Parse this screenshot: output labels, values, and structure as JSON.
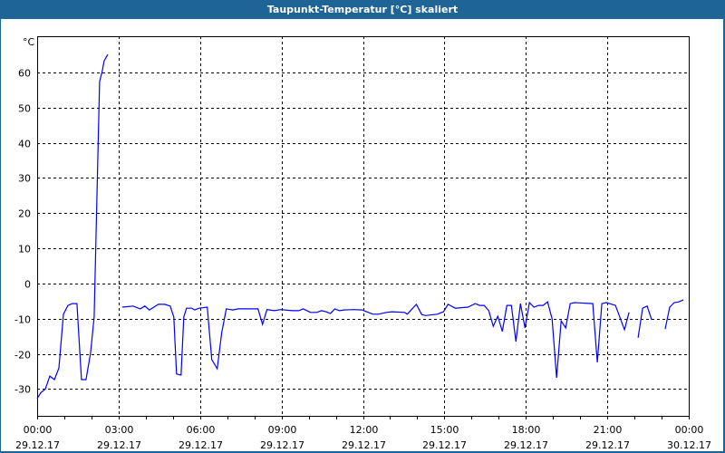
{
  "window": {
    "title": "Taupunkt-Temperatur [°C] skaliert"
  },
  "chart_data": {
    "type": "line",
    "title": "Taupunkt-Temperatur [°C] skaliert",
    "ylabel": "°C",
    "xlabel": "",
    "ylim": [
      -37.6,
      70.3
    ],
    "yticks": [
      60,
      50,
      40,
      30,
      20,
      10,
      0,
      -10,
      -20,
      -30
    ],
    "xlim": [
      "29.12.17 00:00",
      "30.12.17 00:00"
    ],
    "xticks": [
      {
        "time": "00:00",
        "date": "29.12.17"
      },
      {
        "time": "03:00",
        "date": "29.12.17"
      },
      {
        "time": "06:00",
        "date": "29.12.17"
      },
      {
        "time": "09:00",
        "date": "29.12.17"
      },
      {
        "time": "12:00",
        "date": "29.12.17"
      },
      {
        "time": "15:00",
        "date": "29.12.17"
      },
      {
        "time": "18:00",
        "date": "29.12.17"
      },
      {
        "time": "21:00",
        "date": "29.12.17"
      },
      {
        "time": "00:00",
        "date": "30.12.17"
      }
    ],
    "grid": true,
    "line_color": "#0000ff",
    "segments": [
      [
        [
          "00:00",
          -32.7
        ],
        [
          "00:08",
          -31
        ],
        [
          "00:18",
          -30
        ],
        [
          "00:28",
          -26.3
        ],
        [
          "00:38",
          -27.3
        ],
        [
          "00:48",
          -24
        ],
        [
          "00:58",
          -8.7
        ],
        [
          "01:08",
          -6.2
        ],
        [
          "01:18",
          -5.7
        ],
        [
          "01:28",
          -5.7
        ],
        [
          "01:38",
          -27.3
        ],
        [
          "01:48",
          -27.3
        ],
        [
          "01:58",
          -19.8
        ],
        [
          "02:06",
          -9.5
        ],
        [
          "02:18",
          57.4
        ],
        [
          "02:24",
          60.5
        ],
        [
          "02:28",
          63.3
        ],
        [
          "02:36",
          65.1
        ]
      ],
      [
        [
          "03:08",
          -6.7
        ],
        [
          "03:32",
          -6.4
        ],
        [
          "03:48",
          -7.2
        ],
        [
          "03:58",
          -6.4
        ],
        [
          "04:08",
          -7.5
        ],
        [
          "04:28",
          -5.9
        ],
        [
          "04:42",
          -5.9
        ],
        [
          "04:54",
          -6.4
        ],
        [
          "05:02",
          -9.5
        ],
        [
          "05:08",
          -25.7
        ],
        [
          "05:18",
          -26
        ],
        [
          "05:24",
          -9.5
        ],
        [
          "05:30",
          -7
        ],
        [
          "05:42",
          -7
        ],
        [
          "05:48",
          -7.5
        ],
        [
          "05:58",
          -7
        ],
        [
          "06:16",
          -6.7
        ],
        [
          "06:26",
          -21.6
        ],
        [
          "06:38",
          -24.2
        ],
        [
          "06:48",
          -13.9
        ],
        [
          "06:58",
          -7.2
        ],
        [
          "07:12",
          -7.5
        ],
        [
          "07:24",
          -7.2
        ],
        [
          "07:44",
          -7.2
        ],
        [
          "08:08",
          -7.2
        ],
        [
          "08:18",
          -11.6
        ],
        [
          "08:28",
          -7.4
        ],
        [
          "08:44",
          -7.7
        ],
        [
          "08:58",
          -7.4
        ],
        [
          "09:24",
          -7.7
        ],
        [
          "09:38",
          -7.7
        ],
        [
          "09:48",
          -7.2
        ],
        [
          "10:04",
          -8.2
        ],
        [
          "10:18",
          -8.2
        ],
        [
          "10:28",
          -7.7
        ],
        [
          "10:38",
          -8
        ],
        [
          "10:48",
          -8.5
        ],
        [
          "10:58",
          -7.2
        ],
        [
          "11:08",
          -7.7
        ],
        [
          "11:18",
          -7.5
        ],
        [
          "11:38",
          -7.4
        ],
        [
          "11:58",
          -7.5
        ],
        [
          "12:08",
          -8
        ],
        [
          "12:22",
          -8.7
        ],
        [
          "12:34",
          -8.7
        ],
        [
          "12:52",
          -8.2
        ],
        [
          "13:04",
          -8
        ],
        [
          "13:32",
          -8.2
        ],
        [
          "13:38",
          -8.7
        ],
        [
          "13:58",
          -5.9
        ],
        [
          "14:10",
          -8.8
        ],
        [
          "14:18",
          -9.1
        ],
        [
          "14:44",
          -8.7
        ],
        [
          "14:58",
          -8
        ],
        [
          "15:08",
          -5.9
        ],
        [
          "15:24",
          -7
        ],
        [
          "15:52",
          -6.7
        ],
        [
          "16:08",
          -5.7
        ],
        [
          "16:18",
          -6.2
        ],
        [
          "16:28",
          -6.2
        ],
        [
          "16:38",
          -7.7
        ],
        [
          "16:48",
          -12.1
        ],
        [
          "16:58",
          -9.3
        ],
        [
          "17:08",
          -13.6
        ],
        [
          "17:18",
          -6.2
        ],
        [
          "17:28",
          -6.2
        ],
        [
          "17:38",
          -16.5
        ],
        [
          "17:48",
          -5.7
        ],
        [
          "17:58",
          -12.6
        ],
        [
          "18:08",
          -5.4
        ],
        [
          "18:18",
          -6.7
        ],
        [
          "18:28",
          -6.2
        ],
        [
          "18:38",
          -6.2
        ],
        [
          "18:48",
          -5.2
        ],
        [
          "18:58",
          -10
        ],
        [
          "19:08",
          -26.8
        ],
        [
          "19:18",
          -10.6
        ],
        [
          "19:28",
          -12.6
        ],
        [
          "19:38",
          -5.7
        ],
        [
          "19:48",
          -5.4
        ],
        [
          "20:28",
          -5.7
        ],
        [
          "20:38",
          -22.4
        ],
        [
          "20:48",
          -5.7
        ],
        [
          "20:58",
          -5.4
        ],
        [
          "21:18",
          -6.2
        ],
        [
          "21:38",
          -13.1
        ],
        [
          "21:48",
          -8.2
        ]
      ],
      [
        [
          "22:08",
          -15.4
        ],
        [
          "22:18",
          -7
        ],
        [
          "22:28",
          -6.4
        ],
        [
          "22:38",
          -10.3
        ]
      ],
      [
        [
          "23:08",
          -12.9
        ],
        [
          "23:18",
          -6.7
        ],
        [
          "23:28",
          -5.4
        ],
        [
          "23:38",
          -5.2
        ],
        [
          "23:48",
          -4.6
        ]
      ]
    ]
  }
}
